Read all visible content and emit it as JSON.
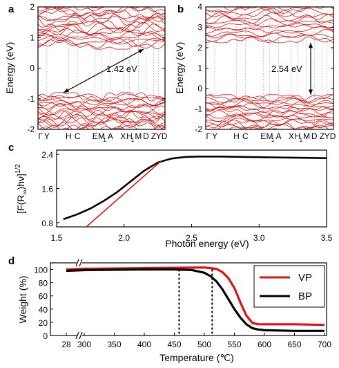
{
  "chart_data": [
    {
      "id": "a",
      "panel_label": "a",
      "type": "line",
      "description_series": "band structure",
      "ylabel": "Energy (eV)",
      "ylim": [
        -2,
        2
      ],
      "yticks": [
        "2",
        "1",
        "0",
        "-1",
        "-2"
      ],
      "xticks": [
        "Γ",
        "Y",
        "H",
        "C",
        "E",
        "M",
        "1",
        "A",
        "X",
        "H",
        "1",
        "M",
        "D",
        "Z",
        "Y",
        "D"
      ],
      "annotation": "1.42 eV",
      "gap_eV": 1.42,
      "vbm_eV": -0.8,
      "cbm_eV": 0.62,
      "color": "#e01010"
    },
    {
      "id": "b",
      "panel_label": "b",
      "type": "line",
      "ylabel": "Energy (eV)",
      "ylim": [
        -2,
        4
      ],
      "yticks": [
        "4",
        "3",
        "2",
        "1",
        "0",
        "-1",
        "-2"
      ],
      "xticks": [
        "Γ",
        "Y",
        "H",
        "C",
        "E",
        "M",
        "1",
        "A",
        "X",
        "H",
        "1",
        "M",
        "D",
        "Z",
        "Y",
        "D"
      ],
      "annotation": "2.54 eV",
      "gap_eV": 2.54,
      "vbm_eV": -0.3,
      "cbm_eV": 2.24,
      "color": "#e01010"
    },
    {
      "id": "c",
      "panel_label": "c",
      "type": "line",
      "xlabel": "Photon energy (eV)",
      "ylabel": "[F(R∞)hν]1/2",
      "xlim": [
        1.5,
        3.5
      ],
      "ylim": [
        0.7,
        2.5
      ],
      "xticks": [
        "1.5",
        "2.0",
        "2.5",
        "3.0",
        "3.5"
      ],
      "yticks": [
        "2.4",
        "1.6",
        "0.8"
      ],
      "series": [
        {
          "color": "#000000",
          "x": [
            1.55,
            1.65,
            1.75,
            1.85,
            1.95,
            2.05,
            2.15,
            2.25,
            2.35,
            2.45,
            2.55,
            2.7,
            2.9,
            3.1,
            3.3,
            3.5
          ],
          "y": [
            0.88,
            0.99,
            1.13,
            1.31,
            1.52,
            1.77,
            2.02,
            2.21,
            2.3,
            2.34,
            2.35,
            2.35,
            2.34,
            2.33,
            2.32,
            2.31
          ]
        },
        {
          "color": "#e01010",
          "x": [
            1.72,
            2.28
          ],
          "y": [
            0.7,
            2.26
          ]
        }
      ]
    },
    {
      "id": "d",
      "panel_label": "d",
      "type": "line",
      "xlabel": "Temperature (℃)",
      "ylabel": "Weight (%)",
      "xticks": [
        "28",
        "300",
        "350",
        "400",
        "450",
        "500",
        "550",
        "600",
        "650",
        "700"
      ],
      "xtick_values": [
        28,
        300,
        350,
        400,
        450,
        500,
        550,
        600,
        650,
        700
      ],
      "ylim": [
        0,
        110
      ],
      "yticks": [
        "100",
        "80",
        "60",
        "40",
        "20",
        "0"
      ],
      "ytick_values": [
        100,
        80,
        60,
        40,
        20,
        0
      ],
      "reference_lines": [
        458,
        513
      ],
      "series": [
        {
          "name": "VP",
          "color": "#e01010",
          "x": [
            28,
            300,
            400,
            500,
            520,
            530,
            540,
            550,
            560,
            570,
            580,
            590,
            600,
            650,
            700
          ],
          "y": [
            100,
            101,
            102,
            103,
            101,
            96,
            87,
            72,
            50,
            30,
            19,
            17,
            17,
            17,
            16
          ]
        },
        {
          "name": "BP",
          "color": "#000000",
          "x": [
            28,
            300,
            400,
            450,
            480,
            500,
            510,
            520,
            530,
            540,
            550,
            560,
            570,
            580,
            590,
            600,
            650,
            700
          ],
          "y": [
            98,
            99,
            100,
            100,
            99,
            95,
            90,
            82,
            70,
            55,
            40,
            27,
            17,
            11,
            9,
            8,
            7,
            7
          ]
        }
      ]
    }
  ]
}
